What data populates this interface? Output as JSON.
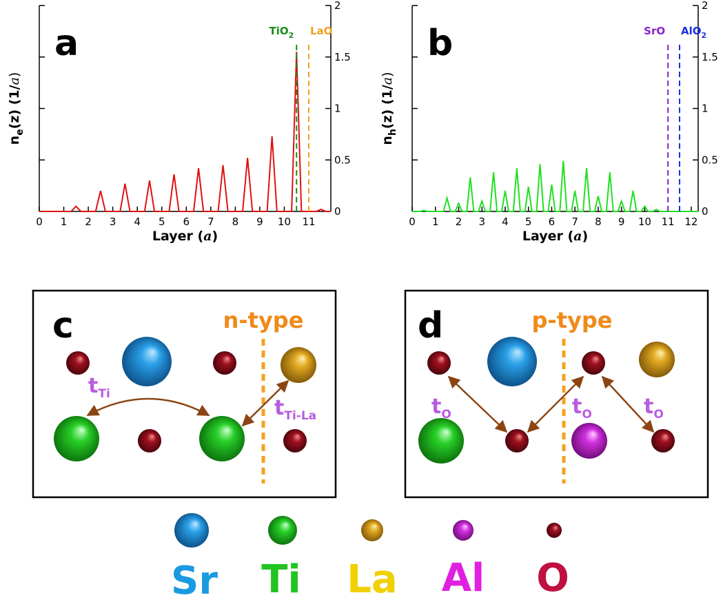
{
  "chart_data": [
    {
      "type": "line",
      "panel": "a",
      "ylabel": [
        "n",
        "e",
        "(z) (1/",
        "a",
        ")"
      ],
      "xlabel": [
        "Layer (",
        "a",
        ")"
      ],
      "xlim": [
        0,
        11.9
      ],
      "ylim": [
        0,
        2
      ],
      "xticks": [
        0,
        1,
        2,
        3,
        4,
        5,
        6,
        7,
        8,
        9,
        10,
        11
      ],
      "yticks": [
        0,
        0.5,
        1,
        1.5,
        2
      ],
      "x": [
        0,
        1.3,
        1.5,
        1.7,
        2.3,
        2.5,
        2.7,
        3.3,
        3.5,
        3.7,
        4.3,
        4.5,
        4.7,
        5.3,
        5.5,
        5.7,
        6.3,
        6.5,
        6.7,
        7.3,
        7.5,
        7.7,
        8.3,
        8.5,
        8.7,
        9.3,
        9.5,
        9.7,
        10.3,
        10.5,
        10.7,
        11.3,
        11.5,
        11.7,
        11.9
      ],
      "series": [
        {
          "color": "#e01010",
          "values": [
            0,
            0,
            0.05,
            0,
            0,
            0.2,
            0,
            0,
            0.27,
            0,
            0,
            0.3,
            0,
            0,
            0.36,
            0,
            0,
            0.42,
            0,
            0,
            0.45,
            0,
            0,
            0.52,
            0,
            0,
            0.73,
            0,
            0,
            1.55,
            0,
            0,
            0.02,
            0,
            0
          ]
        }
      ],
      "annotations": [
        {
          "text": [
            "TiO",
            "2"
          ],
          "x": 10.5,
          "color": "#1a8a1a"
        },
        {
          "text": [
            "LaO"
          ],
          "x": 11,
          "color": "#f0a020"
        }
      ]
    },
    {
      "type": "line",
      "panel": "b",
      "ylabel": [
        "n",
        "h",
        "(z) (1/",
        "a",
        ")"
      ],
      "xlabel": [
        "Layer (",
        "a",
        ")"
      ],
      "xlim": [
        0,
        12.3
      ],
      "ylim": [
        0,
        2
      ],
      "xticks": [
        0,
        1,
        2,
        3,
        4,
        5,
        6,
        7,
        8,
        9,
        10,
        11,
        12
      ],
      "yticks": [
        0,
        0.5,
        1,
        1.5,
        2
      ],
      "x": [
        0,
        0.35,
        0.5,
        0.65,
        1.35,
        1.5,
        1.65,
        1.85,
        2,
        2.15,
        2.35,
        2.5,
        2.65,
        2.85,
        3,
        3.15,
        3.35,
        3.5,
        3.65,
        3.85,
        4,
        4.15,
        4.35,
        4.5,
        4.65,
        4.85,
        5,
        5.15,
        5.35,
        5.5,
        5.65,
        5.85,
        6,
        6.15,
        6.35,
        6.5,
        6.65,
        6.85,
        7,
        7.15,
        7.35,
        7.5,
        7.65,
        7.85,
        8,
        8.15,
        8.35,
        8.5,
        8.65,
        8.85,
        9,
        9.15,
        9.35,
        9.5,
        9.65,
        9.85,
        10,
        10.15,
        10.35,
        10.5,
        10.65,
        12.3
      ],
      "series": [
        {
          "color": "#20e020",
          "values": [
            0,
            0,
            0.01,
            0,
            0,
            0.13,
            0,
            0,
            0.08,
            0,
            0,
            0.33,
            0,
            0,
            0.1,
            0,
            0,
            0.38,
            0,
            0,
            0.2,
            0,
            0,
            0.42,
            0,
            0,
            0.24,
            0,
            0,
            0.46,
            0,
            0,
            0.26,
            0,
            0,
            0.49,
            0,
            0,
            0.2,
            0,
            0,
            0.42,
            0,
            0,
            0.15,
            0,
            0,
            0.38,
            0,
            0,
            0.1,
            0,
            0,
            0.2,
            0,
            0,
            0.05,
            0,
            0,
            0.02,
            0,
            0
          ]
        }
      ],
      "annotations": [
        {
          "text": [
            "SrO"
          ],
          "x": 11,
          "color": "#8a20d0"
        },
        {
          "text": [
            "AlO",
            "2"
          ],
          "x": 11.5,
          "color": "#1a30e0"
        }
      ]
    }
  ],
  "panels": [
    {
      "letter": "c",
      "label": "n-type",
      "hoppings": [
        {
          "t": "t",
          "sub": "Ti"
        },
        {
          "t": "t",
          "sub": "Ti-La"
        }
      ]
    },
    {
      "letter": "d",
      "label": "p-type",
      "hoppings": [
        {
          "t": "t",
          "sub": "O"
        },
        {
          "t": "t",
          "sub": "O"
        },
        {
          "t": "t",
          "sub": "O"
        }
      ]
    }
  ],
  "legend": [
    "Sr",
    "Ti",
    "La",
    "Al",
    "O"
  ]
}
